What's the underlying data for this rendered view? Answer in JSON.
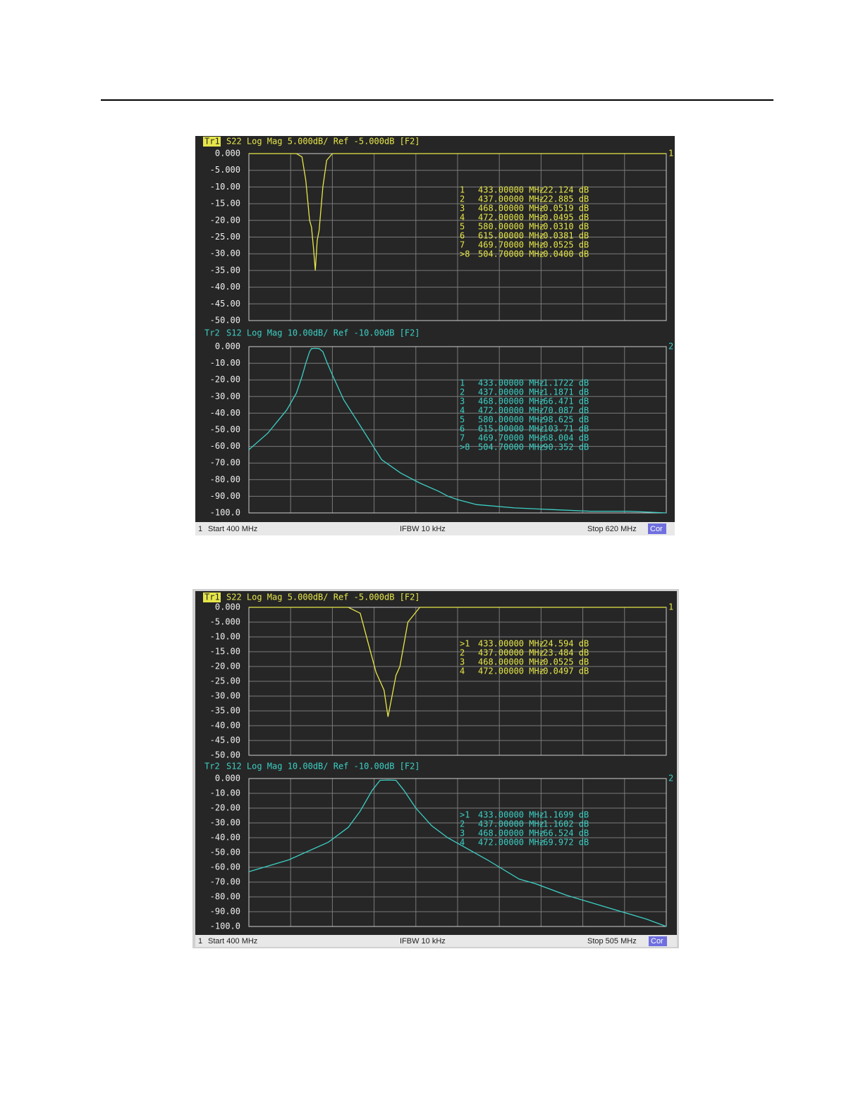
{
  "chart_data": [
    {
      "type": "line",
      "trace": "Tr1",
      "active": true,
      "title": "S22 Log Mag 5.000dB/ Ref -5.000dB [F2]",
      "end_label": "1",
      "color": "#e6e64a",
      "xlim": [
        400,
        620
      ],
      "ylim": [
        -50,
        0
      ],
      "yticks": [
        {
          "value": 0,
          "label": "0.000"
        },
        {
          "value": -5,
          "label": "-5.000"
        },
        {
          "value": -10,
          "label": "-10.00"
        },
        {
          "value": -15,
          "label": "-15.00"
        },
        {
          "value": -20,
          "label": "-20.00"
        },
        {
          "value": -25,
          "label": "-25.00"
        },
        {
          "value": -30,
          "label": "-30.00"
        },
        {
          "value": -35,
          "label": "-35.00"
        },
        {
          "value": -40,
          "label": "-40.00"
        },
        {
          "value": -45,
          "label": "-45.00"
        },
        {
          "value": -50,
          "label": "-50.00"
        }
      ],
      "x": [
        400,
        425,
        428,
        430,
        432,
        433,
        434,
        435,
        436,
        437,
        439,
        441,
        444,
        620
      ],
      "values": [
        0,
        0,
        -1,
        -8,
        -20,
        -22,
        -28,
        -35,
        -26,
        -23,
        -10,
        -2,
        0,
        0
      ],
      "markers": [
        [
          "1",
          "433.00000 MHz",
          "-22.124 dB"
        ],
        [
          "2",
          "437.00000 MHz",
          "-22.885 dB"
        ],
        [
          "3",
          "468.00000 MHz",
          "-0.0519 dB"
        ],
        [
          "4",
          "472.00000 MHz",
          "-0.0495 dB"
        ],
        [
          "5",
          "580.00000 MHz",
          "-0.0310 dB"
        ],
        [
          "6",
          "615.00000 MHz",
          "-0.0381 dB"
        ],
        [
          "7",
          "469.70000 MHz",
          "-0.0525 dB"
        ],
        [
          ">8",
          "504.70000 MHz",
          "-0.0400 dB"
        ]
      ]
    },
    {
      "type": "line",
      "trace": "Tr2",
      "active": false,
      "title": "S12 Log Mag 10.00dB/ Ref -10.00dB [F2]",
      "end_label": "2",
      "color": "#3ccfc4",
      "xlim": [
        400,
        620
      ],
      "ylim": [
        -100,
        0
      ],
      "yticks": [
        {
          "value": 0,
          "label": "0.000"
        },
        {
          "value": -10,
          "label": "-10.00"
        },
        {
          "value": -20,
          "label": "-20.00"
        },
        {
          "value": -30,
          "label": "-30.00"
        },
        {
          "value": -40,
          "label": "-40.00"
        },
        {
          "value": -50,
          "label": "-50.00"
        },
        {
          "value": -60,
          "label": "-60.00"
        },
        {
          "value": -70,
          "label": "-70.00"
        },
        {
          "value": -80,
          "label": "-80.00"
        },
        {
          "value": -90,
          "label": "-90.00"
        },
        {
          "value": -100,
          "label": "-100.0"
        }
      ],
      "x": [
        400,
        410,
        420,
        425,
        428,
        430,
        432,
        433,
        435,
        437,
        439,
        441,
        444,
        450,
        460,
        470,
        480,
        490,
        500,
        505,
        510,
        520,
        540,
        560,
        580,
        600,
        620
      ],
      "values": [
        -62,
        -52,
        -38,
        -28,
        -18,
        -10,
        -3,
        -1.2,
        -1,
        -1.2,
        -3,
        -9,
        -17,
        -32,
        -50,
        -68,
        -76,
        -82,
        -87,
        -90,
        -92,
        -95,
        -97,
        -98,
        -99,
        -99,
        -100
      ],
      "markers": [
        [
          "1",
          "433.00000 MHz",
          "-1.1722 dB"
        ],
        [
          "2",
          "437.00000 MHz",
          "-1.1871 dB"
        ],
        [
          "3",
          "468.00000 MHz",
          "-66.471 dB"
        ],
        [
          "4",
          "472.00000 MHz",
          "-70.087 dB"
        ],
        [
          "5",
          "580.00000 MHz",
          "-98.625 dB"
        ],
        [
          "6",
          "615.00000 MHz",
          "-103.71 dB"
        ],
        [
          "7",
          "469.70000 MHz",
          "-68.004 dB"
        ],
        [
          ">8",
          "504.70000 MHz",
          "-90.352 dB"
        ]
      ]
    },
    {
      "type": "line",
      "trace": "Tr1",
      "active": true,
      "title": "S22 Log Mag 5.000dB/ Ref -5.000dB [F2]",
      "end_label": "1",
      "color": "#e6e64a",
      "xlim": [
        400,
        505
      ],
      "ylim": [
        -50,
        0
      ],
      "yticks": [
        {
          "value": 0,
          "label": "0.000"
        },
        {
          "value": -5,
          "label": "-5.000"
        },
        {
          "value": -10,
          "label": "-10.00"
        },
        {
          "value": -15,
          "label": "-15.00"
        },
        {
          "value": -20,
          "label": "-20.00"
        },
        {
          "value": -25,
          "label": "-25.00"
        },
        {
          "value": -30,
          "label": "-30.00"
        },
        {
          "value": -35,
          "label": "-35.00"
        },
        {
          "value": -40,
          "label": "-40.00"
        },
        {
          "value": -45,
          "label": "-45.00"
        },
        {
          "value": -50,
          "label": "-50.00"
        }
      ],
      "x": [
        400,
        425,
        428,
        430,
        432,
        433,
        434,
        435,
        436,
        437,
        438,
        440,
        443,
        505
      ],
      "values": [
        0,
        0,
        -2,
        -12,
        -22,
        -25,
        -28,
        -37,
        -30,
        -23,
        -20,
        -5,
        0,
        0
      ],
      "markers": [
        [
          ">1",
          "433.00000 MHz",
          "-24.594 dB"
        ],
        [
          "2",
          "437.00000 MHz",
          "-23.484 dB"
        ],
        [
          "3",
          "468.00000 MHz",
          "-0.0525 dB"
        ],
        [
          "4",
          "472.00000 MHz",
          "-0.0497 dB"
        ]
      ]
    },
    {
      "type": "line",
      "trace": "Tr2",
      "active": false,
      "title": "S12 Log Mag 10.00dB/ Ref -10.00dB [F2]",
      "end_label": "2",
      "color": "#3ccfc4",
      "xlim": [
        400,
        505
      ],
      "ylim": [
        -100,
        0
      ],
      "yticks": [
        {
          "value": 0,
          "label": "0.000"
        },
        {
          "value": -10,
          "label": "-10.00"
        },
        {
          "value": -20,
          "label": "-20.00"
        },
        {
          "value": -30,
          "label": "-30.00"
        },
        {
          "value": -40,
          "label": "-40.00"
        },
        {
          "value": -50,
          "label": "-50.00"
        },
        {
          "value": -60,
          "label": "-60.00"
        },
        {
          "value": -70,
          "label": "-70.00"
        },
        {
          "value": -80,
          "label": "-80.00"
        },
        {
          "value": -90,
          "label": "-90.00"
        },
        {
          "value": -100,
          "label": "-100.0"
        }
      ],
      "x": [
        400,
        410,
        420,
        425,
        428,
        431,
        433,
        435,
        437,
        439,
        442,
        446,
        450,
        460,
        468,
        472,
        480,
        490,
        500,
        505
      ],
      "values": [
        -63,
        -55,
        -43,
        -33,
        -22,
        -8,
        -1.2,
        -1,
        -1.2,
        -8,
        -20,
        -32,
        -40,
        -55,
        -68,
        -71,
        -79,
        -87,
        -95,
        -100
      ],
      "markers": [
        [
          ">1",
          "433.00000 MHz",
          "-1.1699 dB"
        ],
        [
          "2",
          "437.00000 MHz",
          "-1.1602 dB"
        ],
        [
          "3",
          "468.00000 MHz",
          "-66.524 dB"
        ],
        [
          "4",
          "472.00000 MHz",
          "-69.972 dB"
        ]
      ]
    }
  ],
  "footers": [
    {
      "channel": "1",
      "start": "Start 400 MHz",
      "ifbw": "IFBW 10 kHz",
      "stop": "Stop 620 MHz",
      "status": "Cor"
    },
    {
      "channel": "1",
      "start": "Start 400 MHz",
      "ifbw": "IFBW 10 kHz",
      "stop": "Stop 505 MHz",
      "status": "Cor"
    }
  ]
}
